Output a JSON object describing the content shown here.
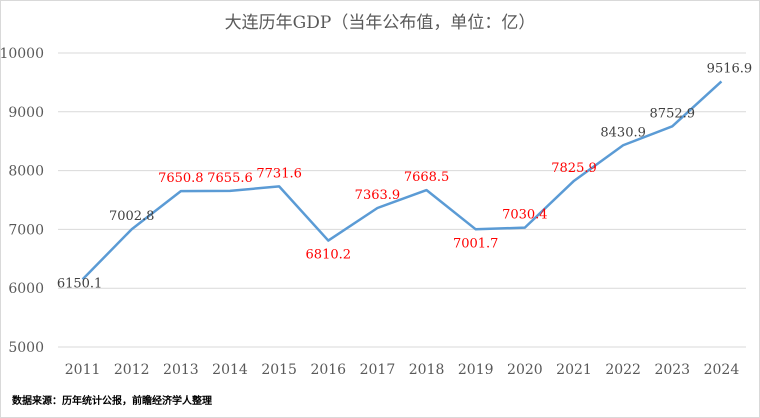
{
  "chart_data": {
    "type": "line",
    "title": "大连历年GDP（当年公布值，单位：亿）",
    "xlabel": "",
    "ylabel": "",
    "x": [
      "2011",
      "2012",
      "2013",
      "2014",
      "2015",
      "2016",
      "2017",
      "2018",
      "2019",
      "2020",
      "2021",
      "2022",
      "2023",
      "2024"
    ],
    "values": [
      6150.1,
      7002.8,
      7650.8,
      7655.6,
      7731.6,
      6810.2,
      7363.9,
      7668.5,
      7001.7,
      7030.4,
      7825.9,
      8430.9,
      8752.9,
      9516.9
    ],
    "labels": [
      "6150.1",
      "7002.8",
      "7650.8",
      "7655.6",
      "7731.6",
      "6810.2",
      "7363.9",
      "7668.5",
      "7001.7",
      "7030.4",
      "7825.9",
      "8430.9",
      "8752.9",
      "9516.9"
    ],
    "label_colors": [
      "#404040",
      "#404040",
      "#ff0000",
      "#ff0000",
      "#ff0000",
      "#ff0000",
      "#ff0000",
      "#ff0000",
      "#ff0000",
      "#ff0000",
      "#ff0000",
      "#404040",
      "#404040",
      "#404040"
    ],
    "y_ticks": [
      "5000",
      "6000",
      "7000",
      "8000",
      "9000",
      "10000"
    ],
    "ylim": [
      5000,
      10000
    ],
    "grid": true,
    "line_color": "#5b9bd5",
    "grid_color": "#d9d9d9",
    "source_note": "数据来源：历年统计公报，前瞻经济学人整理"
  }
}
